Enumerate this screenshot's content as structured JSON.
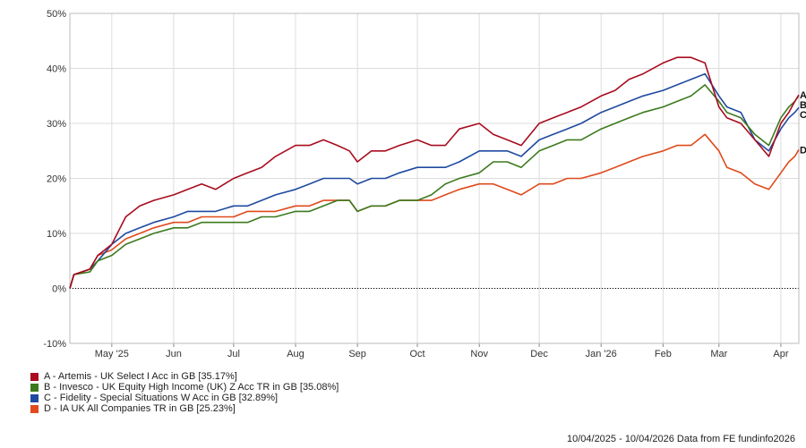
{
  "chart_data": {
    "type": "line",
    "ylim": [
      -10,
      50
    ],
    "y_ticks": [
      -10,
      0,
      10,
      20,
      30,
      40,
      50
    ],
    "y_tick_labels": [
      "-10%",
      "0%",
      "10%",
      "20%",
      "30%",
      "40%",
      "50%"
    ],
    "x_range": [
      "2025-04-10",
      "2026-04-10"
    ],
    "x_ticks": [
      {
        "date": "2025-05-01",
        "label": "May '25"
      },
      {
        "date": "2025-06-01",
        "label": "Jun"
      },
      {
        "date": "2025-07-01",
        "label": "Jul"
      },
      {
        "date": "2025-08-01",
        "label": "Aug"
      },
      {
        "date": "2025-09-01",
        "label": "Sep"
      },
      {
        "date": "2025-10-01",
        "label": "Oct"
      },
      {
        "date": "2025-11-01",
        "label": "Nov"
      },
      {
        "date": "2025-12-01",
        "label": "Dec"
      },
      {
        "date": "2026-01-01",
        "label": "Jan '26"
      },
      {
        "date": "2026-02-01",
        "label": "Feb"
      },
      {
        "date": "2026-03-01",
        "label": "Mar"
      },
      {
        "date": "2026-04-01",
        "label": "Apr"
      }
    ],
    "grid": true,
    "legend_position": "bottom-left",
    "series": [
      {
        "name": "A - Artemis - UK Select I Acc in GB [35.17%]",
        "end_label": "A",
        "color": "#a80c1e",
        "points": [
          [
            "2025-04-10",
            0
          ],
          [
            "2025-04-12",
            2.5
          ],
          [
            "2025-04-20",
            3.5
          ],
          [
            "2025-04-24",
            6
          ],
          [
            "2025-05-01",
            8
          ],
          [
            "2025-05-08",
            13
          ],
          [
            "2025-05-15",
            15
          ],
          [
            "2025-05-22",
            16
          ],
          [
            "2025-06-01",
            17
          ],
          [
            "2025-06-08",
            18
          ],
          [
            "2025-06-15",
            19
          ],
          [
            "2025-06-22",
            18
          ],
          [
            "2025-07-01",
            20
          ],
          [
            "2025-07-08",
            21
          ],
          [
            "2025-07-15",
            22
          ],
          [
            "2025-07-22",
            24
          ],
          [
            "2025-08-01",
            26
          ],
          [
            "2025-08-08",
            26
          ],
          [
            "2025-08-15",
            27
          ],
          [
            "2025-08-22",
            26
          ],
          [
            "2025-08-28",
            25
          ],
          [
            "2025-09-01",
            23
          ],
          [
            "2025-09-08",
            25
          ],
          [
            "2025-09-15",
            25
          ],
          [
            "2025-09-22",
            26
          ],
          [
            "2025-10-01",
            27
          ],
          [
            "2025-10-08",
            26
          ],
          [
            "2025-10-15",
            26
          ],
          [
            "2025-10-22",
            29
          ],
          [
            "2025-11-01",
            30
          ],
          [
            "2025-11-08",
            28
          ],
          [
            "2025-11-15",
            27
          ],
          [
            "2025-11-22",
            26
          ],
          [
            "2025-12-01",
            30
          ],
          [
            "2025-12-08",
            31
          ],
          [
            "2025-12-15",
            32
          ],
          [
            "2025-12-22",
            33
          ],
          [
            "2026-01-01",
            35
          ],
          [
            "2026-01-08",
            36
          ],
          [
            "2026-01-15",
            38
          ],
          [
            "2026-01-22",
            39
          ],
          [
            "2026-02-01",
            41
          ],
          [
            "2026-02-08",
            42
          ],
          [
            "2026-02-15",
            42
          ],
          [
            "2026-02-22",
            41
          ],
          [
            "2026-03-01",
            33
          ],
          [
            "2026-03-05",
            31
          ],
          [
            "2026-03-12",
            30
          ],
          [
            "2026-03-19",
            27
          ],
          [
            "2026-03-26",
            24
          ],
          [
            "2026-04-01",
            30
          ],
          [
            "2026-04-05",
            32
          ],
          [
            "2026-04-08",
            34
          ],
          [
            "2026-04-10",
            35.17
          ]
        ]
      },
      {
        "name": "B - Invesco - UK Equity High Income (UK) Z Acc TR in GB [35.08%]",
        "end_label": "B",
        "color": "#3c7a1e",
        "points": [
          [
            "2025-04-10",
            0
          ],
          [
            "2025-04-12",
            2.5
          ],
          [
            "2025-04-20",
            3
          ],
          [
            "2025-04-24",
            5
          ],
          [
            "2025-05-01",
            6
          ],
          [
            "2025-05-08",
            8
          ],
          [
            "2025-05-15",
            9
          ],
          [
            "2025-05-22",
            10
          ],
          [
            "2025-06-01",
            11
          ],
          [
            "2025-06-08",
            11
          ],
          [
            "2025-06-15",
            12
          ],
          [
            "2025-06-22",
            12
          ],
          [
            "2025-07-01",
            12
          ],
          [
            "2025-07-08",
            12
          ],
          [
            "2025-07-15",
            13
          ],
          [
            "2025-07-22",
            13
          ],
          [
            "2025-08-01",
            14
          ],
          [
            "2025-08-08",
            14
          ],
          [
            "2025-08-15",
            15
          ],
          [
            "2025-08-22",
            16
          ],
          [
            "2025-08-28",
            16
          ],
          [
            "2025-09-01",
            14
          ],
          [
            "2025-09-08",
            15
          ],
          [
            "2025-09-15",
            15
          ],
          [
            "2025-09-22",
            16
          ],
          [
            "2025-10-01",
            16
          ],
          [
            "2025-10-08",
            17
          ],
          [
            "2025-10-15",
            19
          ],
          [
            "2025-10-22",
            20
          ],
          [
            "2025-11-01",
            21
          ],
          [
            "2025-11-08",
            23
          ],
          [
            "2025-11-15",
            23
          ],
          [
            "2025-11-22",
            22
          ],
          [
            "2025-12-01",
            25
          ],
          [
            "2025-12-08",
            26
          ],
          [
            "2025-12-15",
            27
          ],
          [
            "2025-12-22",
            27
          ],
          [
            "2026-01-01",
            29
          ],
          [
            "2026-01-08",
            30
          ],
          [
            "2026-01-15",
            31
          ],
          [
            "2026-01-22",
            32
          ],
          [
            "2026-02-01",
            33
          ],
          [
            "2026-02-08",
            34
          ],
          [
            "2026-02-15",
            35
          ],
          [
            "2026-02-22",
            37
          ],
          [
            "2026-03-01",
            34
          ],
          [
            "2026-03-05",
            32
          ],
          [
            "2026-03-12",
            31
          ],
          [
            "2026-03-19",
            28
          ],
          [
            "2026-03-26",
            26
          ],
          [
            "2026-04-01",
            31
          ],
          [
            "2026-04-05",
            33
          ],
          [
            "2026-04-08",
            34
          ],
          [
            "2026-04-10",
            35.08
          ]
        ]
      },
      {
        "name": "C - Fidelity - Special Situations W Acc in GB [32.89%]",
        "end_label": "C",
        "color": "#1f4aa0",
        "points": [
          [
            "2025-04-10",
            0
          ],
          [
            "2025-04-12",
            2.5
          ],
          [
            "2025-04-20",
            3.5
          ],
          [
            "2025-04-24",
            5
          ],
          [
            "2025-05-01",
            8
          ],
          [
            "2025-05-08",
            10
          ],
          [
            "2025-05-15",
            11
          ],
          [
            "2025-05-22",
            12
          ],
          [
            "2025-06-01",
            13
          ],
          [
            "2025-06-08",
            14
          ],
          [
            "2025-06-15",
            14
          ],
          [
            "2025-06-22",
            14
          ],
          [
            "2025-07-01",
            15
          ],
          [
            "2025-07-08",
            15
          ],
          [
            "2025-07-15",
            16
          ],
          [
            "2025-07-22",
            17
          ],
          [
            "2025-08-01",
            18
          ],
          [
            "2025-08-08",
            19
          ],
          [
            "2025-08-15",
            20
          ],
          [
            "2025-08-22",
            20
          ],
          [
            "2025-08-28",
            20
          ],
          [
            "2025-09-01",
            19
          ],
          [
            "2025-09-08",
            20
          ],
          [
            "2025-09-15",
            20
          ],
          [
            "2025-09-22",
            21
          ],
          [
            "2025-10-01",
            22
          ],
          [
            "2025-10-08",
            22
          ],
          [
            "2025-10-15",
            22
          ],
          [
            "2025-10-22",
            23
          ],
          [
            "2025-11-01",
            25
          ],
          [
            "2025-11-08",
            25
          ],
          [
            "2025-11-15",
            25
          ],
          [
            "2025-11-22",
            24
          ],
          [
            "2025-12-01",
            27
          ],
          [
            "2025-12-08",
            28
          ],
          [
            "2025-12-15",
            29
          ],
          [
            "2025-12-22",
            30
          ],
          [
            "2026-01-01",
            32
          ],
          [
            "2026-01-08",
            33
          ],
          [
            "2026-01-15",
            34
          ],
          [
            "2026-01-22",
            35
          ],
          [
            "2026-02-01",
            36
          ],
          [
            "2026-02-08",
            37
          ],
          [
            "2026-02-15",
            38
          ],
          [
            "2026-02-22",
            39
          ],
          [
            "2026-03-01",
            35
          ],
          [
            "2026-03-05",
            33
          ],
          [
            "2026-03-12",
            32
          ],
          [
            "2026-03-19",
            27
          ],
          [
            "2026-03-26",
            25
          ],
          [
            "2026-04-01",
            29
          ],
          [
            "2026-04-05",
            31
          ],
          [
            "2026-04-08",
            32
          ],
          [
            "2026-04-10",
            32.89
          ]
        ]
      },
      {
        "name": "D - IA UK All Companies TR in GB [25.23%]",
        "end_label": "D",
        "color": "#e04a1c",
        "points": [
          [
            "2025-04-10",
            0
          ],
          [
            "2025-04-12",
            2.5
          ],
          [
            "2025-04-20",
            3.5
          ],
          [
            "2025-04-24",
            6
          ],
          [
            "2025-05-01",
            7
          ],
          [
            "2025-05-08",
            9
          ],
          [
            "2025-05-15",
            10
          ],
          [
            "2025-05-22",
            11
          ],
          [
            "2025-06-01",
            12
          ],
          [
            "2025-06-08",
            12
          ],
          [
            "2025-06-15",
            13
          ],
          [
            "2025-06-22",
            13
          ],
          [
            "2025-07-01",
            13
          ],
          [
            "2025-07-08",
            14
          ],
          [
            "2025-07-15",
            14
          ],
          [
            "2025-07-22",
            14
          ],
          [
            "2025-08-01",
            15
          ],
          [
            "2025-08-08",
            15
          ],
          [
            "2025-08-15",
            16
          ],
          [
            "2025-08-22",
            16
          ],
          [
            "2025-08-28",
            16
          ],
          [
            "2025-09-01",
            14
          ],
          [
            "2025-09-08",
            15
          ],
          [
            "2025-09-15",
            15
          ],
          [
            "2025-09-22",
            16
          ],
          [
            "2025-10-01",
            16
          ],
          [
            "2025-10-08",
            16
          ],
          [
            "2025-10-15",
            17
          ],
          [
            "2025-10-22",
            18
          ],
          [
            "2025-11-01",
            19
          ],
          [
            "2025-11-08",
            19
          ],
          [
            "2025-11-15",
            18
          ],
          [
            "2025-11-22",
            17
          ],
          [
            "2025-12-01",
            19
          ],
          [
            "2025-12-08",
            19
          ],
          [
            "2025-12-15",
            20
          ],
          [
            "2025-12-22",
            20
          ],
          [
            "2026-01-01",
            21
          ],
          [
            "2026-01-08",
            22
          ],
          [
            "2026-01-15",
            23
          ],
          [
            "2026-01-22",
            24
          ],
          [
            "2026-02-01",
            25
          ],
          [
            "2026-02-08",
            26
          ],
          [
            "2026-02-15",
            26
          ],
          [
            "2026-02-22",
            28
          ],
          [
            "2026-03-01",
            25
          ],
          [
            "2026-03-05",
            22
          ],
          [
            "2026-03-12",
            21
          ],
          [
            "2026-03-19",
            19
          ],
          [
            "2026-03-26",
            18
          ],
          [
            "2026-04-01",
            21
          ],
          [
            "2026-04-05",
            23
          ],
          [
            "2026-04-08",
            24
          ],
          [
            "2026-04-10",
            25.23
          ]
        ]
      }
    ]
  },
  "footer_text": "10/04/2025 - 10/04/2026 Data from FE fundinfo2026"
}
